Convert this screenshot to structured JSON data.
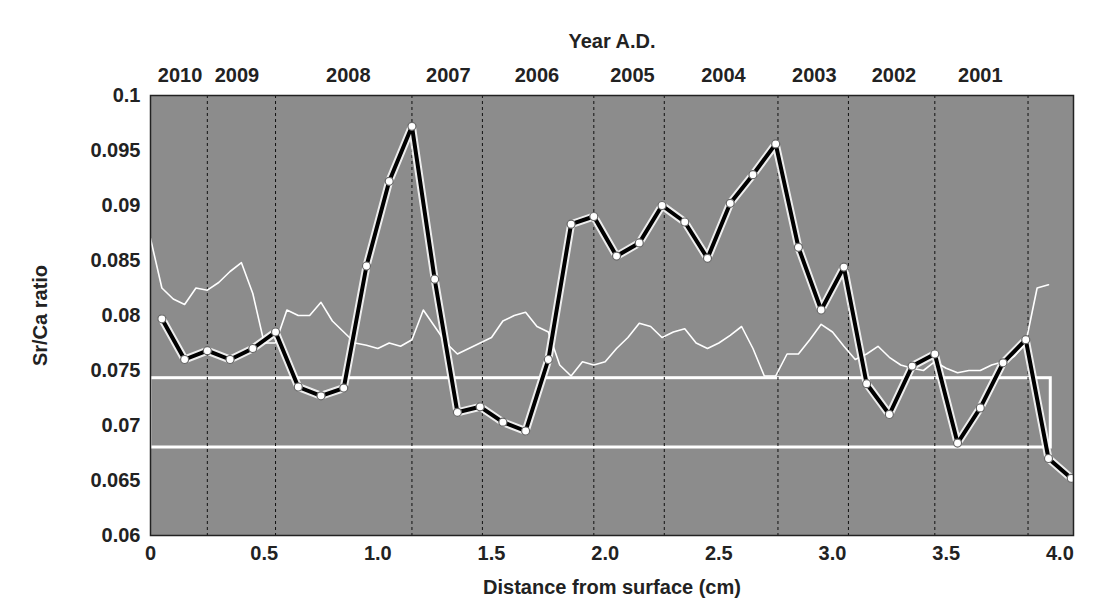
{
  "chart_data": {
    "type": "line",
    "x_label": "Distance from surface (cm)",
    "y_label": "Sr/Ca ratio",
    "xlim": [
      0,
      4.06
    ],
    "xticks": [
      0,
      0.5,
      {
        "value": 1,
        "label": "1.0"
      },
      1.5,
      {
        "value": 2,
        "label": "2.0"
      },
      2.5,
      {
        "value": 3,
        "label": "3.0"
      },
      3.5,
      {
        "value": 4,
        "label": "4.0"
      }
    ],
    "ylim": [
      0.06,
      0.1
    ],
    "yticks": [
      0.06,
      0.065,
      0.07,
      0.075,
      0.08,
      0.085,
      0.09,
      0.095,
      0.1
    ],
    "grid": false,
    "top_axis": {
      "label": "Year A.D.",
      "ticks": [
        {
          "value": 0.13,
          "label": "2010"
        },
        {
          "value": 0.38,
          "label": "2009"
        },
        {
          "value": 0.87,
          "label": "2008"
        },
        {
          "value": 1.31,
          "label": "2007"
        },
        {
          "value": 1.7,
          "label": "2006"
        },
        {
          "value": 2.12,
          "label": "2005"
        },
        {
          "value": 2.52,
          "label": "2004"
        },
        {
          "value": 2.92,
          "label": "2003"
        },
        {
          "value": 3.27,
          "label": "2002"
        },
        {
          "value": 3.65,
          "label": "2001"
        }
      ],
      "boundaries": [
        0.25,
        0.55,
        1.15,
        1.46,
        1.95,
        2.26,
        2.76,
        3.07,
        3.45,
        3.86
      ]
    },
    "bands": [
      {
        "xlim": [
          0,
          3.96
        ],
        "ylim": [
          0.068,
          0.0743
        ],
        "color": "#ffffff"
      }
    ],
    "series": [
      {
        "color": "#000000",
        "marker": "circle",
        "line_style": "solid",
        "x": [
          0.05,
          0.15,
          0.25,
          0.35,
          0.45,
          0.55,
          0.65,
          0.75,
          0.85,
          0.95,
          1.05,
          1.15,
          1.25,
          1.35,
          1.45,
          1.55,
          1.65,
          1.75,
          1.85,
          1.95,
          2.05,
          2.15,
          2.25,
          2.35,
          2.45,
          2.55,
          2.65,
          2.75,
          2.85,
          2.95,
          3.05,
          3.15,
          3.25,
          3.35,
          3.45,
          3.55,
          3.65,
          3.75,
          3.85,
          3.95,
          4.05
        ],
        "values": [
          0.0797,
          0.076,
          0.0768,
          0.076,
          0.077,
          0.0785,
          0.0735,
          0.0727,
          0.0734,
          0.0845,
          0.0922,
          0.0972,
          0.0833,
          0.0712,
          0.0717,
          0.0703,
          0.0695,
          0.076,
          0.0883,
          0.089,
          0.0854,
          0.0866,
          0.09,
          0.0885,
          0.0852,
          0.0902,
          0.0928,
          0.0956,
          0.0862,
          0.0805,
          0.0844,
          0.0738,
          0.071,
          0.0754,
          0.0765,
          0.0684,
          0.0716,
          0.0757,
          0.0778,
          0.067,
          0.0652
        ]
      },
      {
        "color": "#ffffff",
        "line_style": "solid",
        "x": [
          0,
          0.05,
          0.1,
          0.15,
          0.2,
          0.25,
          0.3,
          0.35,
          0.4,
          0.45,
          0.5,
          0.55,
          0.6,
          0.65,
          0.7,
          0.75,
          0.8,
          0.85,
          0.9,
          0.95,
          1,
          1.05,
          1.1,
          1.15,
          1.2,
          1.25,
          1.3,
          1.35,
          1.4,
          1.45,
          1.5,
          1.55,
          1.6,
          1.65,
          1.7,
          1.75,
          1.8,
          1.85,
          1.9,
          1.95,
          2,
          2.05,
          2.1,
          2.15,
          2.2,
          2.25,
          2.3,
          2.35,
          2.4,
          2.45,
          2.5,
          2.55,
          2.6,
          2.65,
          2.7,
          2.75,
          2.8,
          2.85,
          2.9,
          2.95,
          3,
          3.05,
          3.1,
          3.15,
          3.2,
          3.25,
          3.3,
          3.35,
          3.4,
          3.45,
          3.5,
          3.55,
          3.6,
          3.65,
          3.7,
          3.75,
          3.8,
          3.85,
          3.9,
          3.95
        ],
        "values": [
          0.087,
          0.0825,
          0.0815,
          0.081,
          0.0825,
          0.0823,
          0.083,
          0.084,
          0.0848,
          0.082,
          0.0775,
          0.0775,
          0.0805,
          0.08,
          0.08,
          0.0812,
          0.0795,
          0.0785,
          0.0775,
          0.0773,
          0.077,
          0.0775,
          0.0772,
          0.0778,
          0.0805,
          0.079,
          0.0775,
          0.0765,
          0.077,
          0.0775,
          0.078,
          0.0795,
          0.08,
          0.0803,
          0.079,
          0.0785,
          0.0755,
          0.0745,
          0.0758,
          0.0755,
          0.0758,
          0.077,
          0.078,
          0.0793,
          0.079,
          0.078,
          0.0785,
          0.0788,
          0.0775,
          0.077,
          0.0775,
          0.0782,
          0.079,
          0.077,
          0.0745,
          0.0745,
          0.0765,
          0.0765,
          0.0778,
          0.0792,
          0.0785,
          0.0772,
          0.076,
          0.0765,
          0.0772,
          0.0762,
          0.0755,
          0.0752,
          0.075,
          0.0758,
          0.0752,
          0.0748,
          0.075,
          0.075,
          0.0755,
          0.0758,
          0.0763,
          0.0775,
          0.0825,
          0.0828
        ]
      }
    ]
  }
}
